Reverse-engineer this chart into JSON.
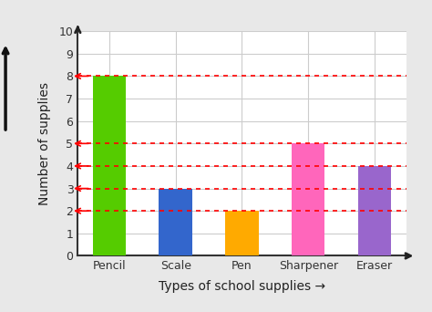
{
  "categories": [
    "Pencil",
    "Scale",
    "Pen",
    "Sharpener",
    "Eraser"
  ],
  "values": [
    8,
    3,
    2,
    5,
    4
  ],
  "bar_colors": [
    "#55cc00",
    "#3366cc",
    "#ffaa00",
    "#ff66bb",
    "#9966cc"
  ],
  "xlabel": "Types of school supplies →",
  "ylabel": "Number of supplies",
  "ylim": [
    0,
    10
  ],
  "yticks": [
    0,
    1,
    2,
    3,
    4,
    5,
    6,
    7,
    8,
    9,
    10
  ],
  "background_color": "#e8e8e8",
  "plot_bg_color": "#ffffff",
  "grid_color": "#cccccc",
  "dashed_lines": [
    8,
    5,
    4,
    3,
    2
  ],
  "axis_label_fontsize": 10,
  "tick_fontsize": 9
}
